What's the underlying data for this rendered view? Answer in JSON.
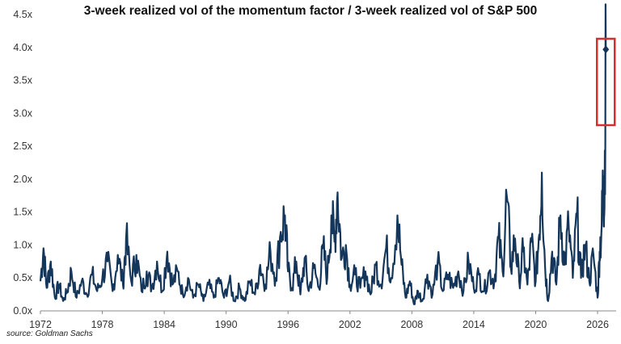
{
  "chart_data": {
    "type": "line",
    "title": "3-week realized vol of the momentum factor / 3-week realized vol of S&P 500",
    "xlabel": "",
    "ylabel": "",
    "xlim": [
      1972,
      2027.8
    ],
    "ylim": [
      0,
      4.5
    ],
    "x_ticks": [
      1972,
      1978,
      1984,
      1990,
      1996,
      2002,
      2008,
      2014,
      2020,
      2026
    ],
    "x_tick_labels": [
      "1972",
      "1978",
      "1984",
      "1990",
      "1996",
      "2002",
      "2008",
      "2014",
      "2020",
      "2026"
    ],
    "y_ticks": [
      0,
      0.5,
      1,
      1.5,
      2,
      2.5,
      3,
      3.5,
      4,
      4.5
    ],
    "y_tick_labels": [
      "0.0x",
      "0.5x",
      "1.0x",
      "1.5x",
      "2.0x",
      "2.5x",
      "3.0x",
      "3.5x",
      "4.0x",
      "4.5x"
    ],
    "grid": false,
    "legend": "none",
    "series": [
      {
        "color": "#14365a",
        "points": [
          [
            1972.0,
            0.45
          ],
          [
            1972.3,
            0.95
          ],
          [
            1972.6,
            0.35
          ],
          [
            1973.0,
            0.75
          ],
          [
            1973.4,
            0.2
          ],
          [
            1973.8,
            0.4
          ],
          [
            1974.2,
            0.15
          ],
          [
            1974.6,
            0.3
          ],
          [
            1975.0,
            0.6
          ],
          [
            1975.5,
            0.2
          ],
          [
            1976.0,
            0.45
          ],
          [
            1976.5,
            0.25
          ],
          [
            1977.0,
            0.55
          ],
          [
            1977.5,
            0.3
          ],
          [
            1978.0,
            0.5
          ],
          [
            1978.5,
            0.75
          ],
          [
            1979.0,
            0.3
          ],
          [
            1979.5,
            0.85
          ],
          [
            1980.0,
            0.4
          ],
          [
            1980.3,
            1.1
          ],
          [
            1980.8,
            0.45
          ],
          [
            1981.3,
            0.85
          ],
          [
            1981.8,
            0.3
          ],
          [
            1982.3,
            0.6
          ],
          [
            1982.8,
            0.35
          ],
          [
            1983.3,
            0.75
          ],
          [
            1983.8,
            0.3
          ],
          [
            1984.3,
            0.9
          ],
          [
            1984.8,
            0.4
          ],
          [
            1985.3,
            0.6
          ],
          [
            1985.8,
            0.25
          ],
          [
            1986.3,
            0.5
          ],
          [
            1986.8,
            0.2
          ],
          [
            1987.3,
            0.4
          ],
          [
            1987.8,
            0.15
          ],
          [
            1988.3,
            0.4
          ],
          [
            1988.8,
            0.2
          ],
          [
            1989.3,
            0.5
          ],
          [
            1989.8,
            0.2
          ],
          [
            1990.3,
            0.45
          ],
          [
            1990.8,
            0.15
          ],
          [
            1991.3,
            0.35
          ],
          [
            1991.8,
            0.15
          ],
          [
            1992.3,
            0.45
          ],
          [
            1992.8,
            0.25
          ],
          [
            1993.3,
            0.7
          ],
          [
            1993.8,
            0.4
          ],
          [
            1994.3,
            0.9
          ],
          [
            1994.8,
            0.5
          ],
          [
            1995.3,
            1.2
          ],
          [
            1995.7,
            1.45
          ],
          [
            1996.0,
            0.6
          ],
          [
            1996.4,
            0.35
          ],
          [
            1996.8,
            0.75
          ],
          [
            1997.2,
            0.25
          ],
          [
            1997.6,
            0.8
          ],
          [
            1998.0,
            0.3
          ],
          [
            1998.5,
            0.65
          ],
          [
            1999.0,
            0.35
          ],
          [
            1999.4,
            0.95
          ],
          [
            1999.8,
            0.5
          ],
          [
            2000.2,
            1.45
          ],
          [
            2000.5,
            1.05
          ],
          [
            2000.8,
            1.8
          ],
          [
            2001.2,
            0.8
          ],
          [
            2001.6,
            1.0
          ],
          [
            2002.0,
            0.4
          ],
          [
            2002.5,
            0.55
          ],
          [
            2003.0,
            0.35
          ],
          [
            2003.5,
            0.6
          ],
          [
            2004.0,
            0.25
          ],
          [
            2004.5,
            0.7
          ],
          [
            2005.0,
            0.4
          ],
          [
            2005.5,
            0.95
          ],
          [
            2006.0,
            0.5
          ],
          [
            2006.6,
            1.45
          ],
          [
            2007.0,
            0.7
          ],
          [
            2007.4,
            0.2
          ],
          [
            2007.8,
            0.45
          ],
          [
            2008.2,
            0.1
          ],
          [
            2008.6,
            0.3
          ],
          [
            2009.0,
            0.15
          ],
          [
            2009.5,
            0.55
          ],
          [
            2010.0,
            0.25
          ],
          [
            2010.5,
            0.75
          ],
          [
            2011.0,
            0.3
          ],
          [
            2011.5,
            0.55
          ],
          [
            2012.0,
            0.35
          ],
          [
            2012.5,
            0.6
          ],
          [
            2013.0,
            0.3
          ],
          [
            2013.5,
            0.75
          ],
          [
            2014.0,
            0.35
          ],
          [
            2014.5,
            0.55
          ],
          [
            2015.0,
            0.3
          ],
          [
            2015.5,
            0.6
          ],
          [
            2016.0,
            0.45
          ],
          [
            2016.4,
            1.1
          ],
          [
            2016.8,
            0.6
          ],
          [
            2017.2,
            1.75
          ],
          [
            2017.6,
            0.65
          ],
          [
            2018.0,
            1.1
          ],
          [
            2018.4,
            0.45
          ],
          [
            2018.8,
            0.9
          ],
          [
            2019.2,
            0.4
          ],
          [
            2019.6,
            1.05
          ],
          [
            2020.0,
            0.45
          ],
          [
            2020.3,
            1.1
          ],
          [
            2020.6,
            2.1
          ],
          [
            2020.9,
            0.7
          ],
          [
            2021.2,
            0.15
          ],
          [
            2021.6,
            0.9
          ],
          [
            2022.0,
            0.4
          ],
          [
            2022.4,
            1.45
          ],
          [
            2022.8,
            0.7
          ],
          [
            2023.2,
            1.3
          ],
          [
            2023.6,
            0.5
          ],
          [
            2024.0,
            1.45
          ],
          [
            2024.4,
            0.5
          ],
          [
            2024.8,
            1.0
          ],
          [
            2025.2,
            0.45
          ],
          [
            2025.6,
            0.85
          ],
          [
            2026.0,
            0.2
          ],
          [
            2026.2,
            0.9
          ],
          [
            2026.4,
            1.3
          ],
          [
            2026.55,
            2.05
          ],
          [
            2026.65,
            1.45
          ],
          [
            2026.8,
            3.97
          ]
        ]
      }
    ],
    "highlight": {
      "x": 2026.8,
      "y": 3.97,
      "box_color": "#d42f2f",
      "marker": "diamond"
    }
  },
  "source": "source: Goldman Sachs"
}
